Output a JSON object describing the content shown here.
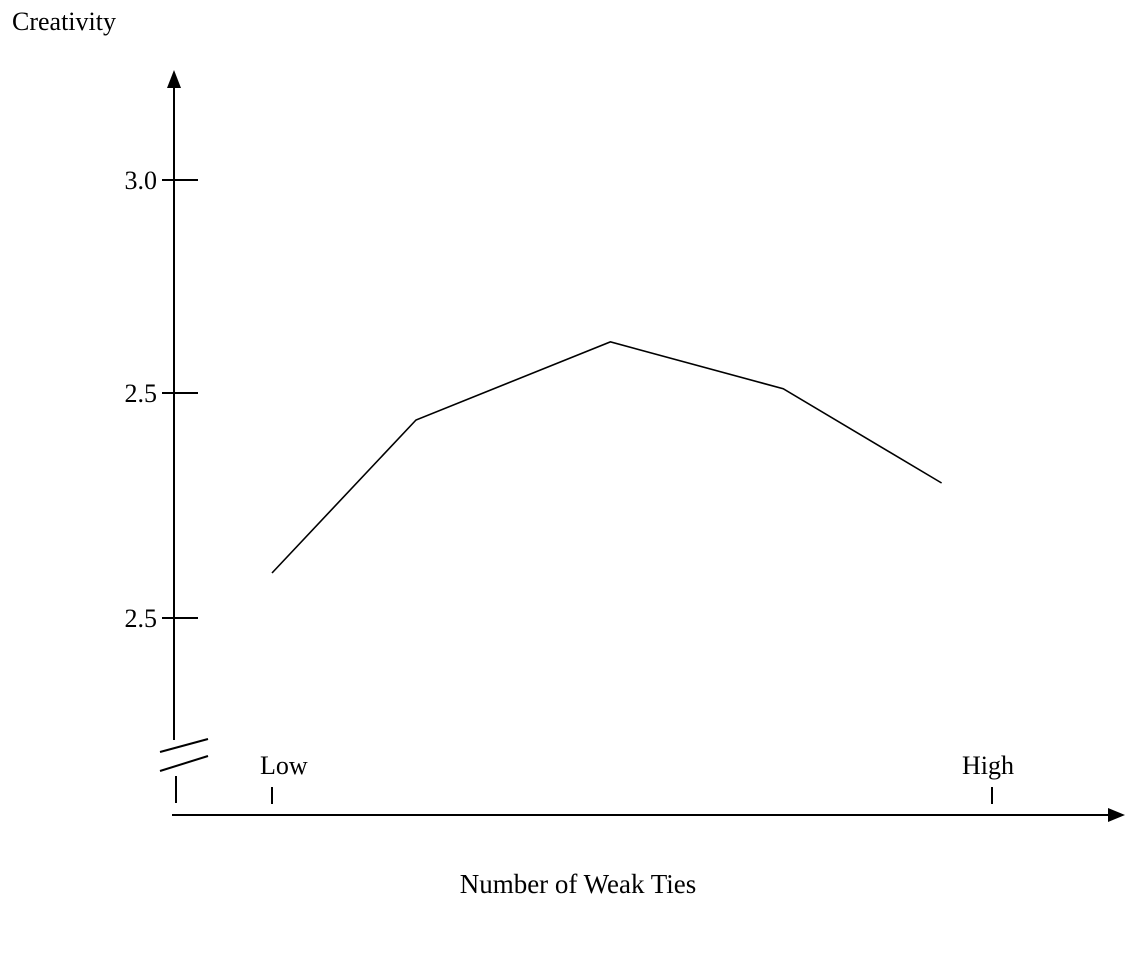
{
  "chart_data": {
    "type": "line",
    "title": "",
    "ylabel": "Creativity",
    "xlabel": "Number of Weak Ties",
    "x_tick_labels": [
      "Low",
      "High"
    ],
    "y_tick_labels": [
      "3.0",
      "2.5",
      "2.5"
    ],
    "y_axis_break": true,
    "grid": false,
    "legend": "none",
    "series": [
      {
        "x": [
          0,
          0.2,
          0.47,
          0.71,
          0.93
        ],
        "y": [
          2.1,
          2.44,
          2.62,
          2.51,
          2.3
        ]
      }
    ]
  }
}
